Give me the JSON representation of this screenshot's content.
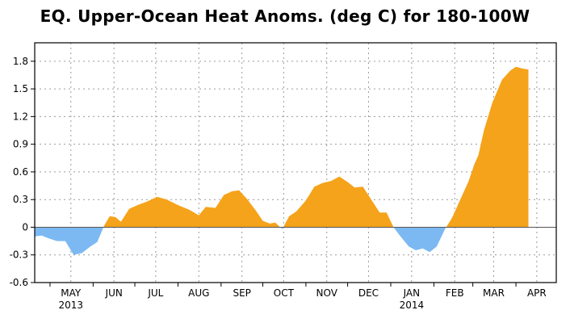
{
  "chart_data": {
    "type": "area",
    "title": "EQ. Upper-Ocean Heat Anoms. (deg C) for 180-100W",
    "xlabel": "",
    "ylabel": "",
    "ylim": [
      -0.6,
      2.0
    ],
    "yticks": [
      -0.6,
      -0.3,
      0,
      0.3,
      0.6,
      0.9,
      1.2,
      1.5,
      1.8
    ],
    "ytick_labels": [
      "-0.6",
      "-0.3",
      "0",
      "0.3",
      "0.6",
      "0.9",
      "1.2",
      "1.5",
      "1.8"
    ],
    "x_start": "2013-04-20",
    "x_end": "2014-04-30",
    "month_ticks": [
      {
        "date": "2013-05-01",
        "label": "MAY",
        "year": "2013"
      },
      {
        "date": "2013-06-01",
        "label": "JUN",
        "year": ""
      },
      {
        "date": "2013-07-01",
        "label": "JUL",
        "year": ""
      },
      {
        "date": "2013-08-01",
        "label": "AUG",
        "year": ""
      },
      {
        "date": "2013-09-01",
        "label": "SEP",
        "year": ""
      },
      {
        "date": "2013-10-01",
        "label": "OCT",
        "year": ""
      },
      {
        "date": "2013-11-01",
        "label": "NOV",
        "year": ""
      },
      {
        "date": "2013-12-01",
        "label": "DEC",
        "year": ""
      },
      {
        "date": "2014-01-01",
        "label": "JAN",
        "year": "2014"
      },
      {
        "date": "2014-02-01",
        "label": "FEB",
        "year": ""
      },
      {
        "date": "2014-03-01",
        "label": "MAR",
        "year": ""
      },
      {
        "date": "2014-04-01",
        "label": "APR",
        "year": ""
      }
    ],
    "grid": true,
    "positive_color": "#f5a31a",
    "negative_color": "#7cb9f2",
    "points": [
      {
        "date": "2013-04-20",
        "y": -0.1
      },
      {
        "date": "2013-04-25",
        "y": -0.09
      },
      {
        "date": "2013-04-30",
        "y": -0.12
      },
      {
        "date": "2013-05-06",
        "y": -0.15
      },
      {
        "date": "2013-05-12",
        "y": -0.15
      },
      {
        "date": "2013-05-18",
        "y": -0.3
      },
      {
        "date": "2013-05-24",
        "y": -0.28
      },
      {
        "date": "2013-05-30",
        "y": -0.21
      },
      {
        "date": "2013-06-04",
        "y": -0.16
      },
      {
        "date": "2013-06-09",
        "y": 0.02
      },
      {
        "date": "2013-06-13",
        "y": 0.12
      },
      {
        "date": "2013-06-17",
        "y": 0.11
      },
      {
        "date": "2013-06-21",
        "y": 0.06
      },
      {
        "date": "2013-06-27",
        "y": 0.2
      },
      {
        "date": "2013-07-03",
        "y": 0.24
      },
      {
        "date": "2013-07-10",
        "y": 0.28
      },
      {
        "date": "2013-07-17",
        "y": 0.33
      },
      {
        "date": "2013-07-24",
        "y": 0.3
      },
      {
        "date": "2013-08-01",
        "y": 0.24
      },
      {
        "date": "2013-08-09",
        "y": 0.19
      },
      {
        "date": "2013-08-16",
        "y": 0.13
      },
      {
        "date": "2013-08-21",
        "y": 0.22
      },
      {
        "date": "2013-08-28",
        "y": 0.21
      },
      {
        "date": "2013-09-03",
        "y": 0.35
      },
      {
        "date": "2013-09-09",
        "y": 0.39
      },
      {
        "date": "2013-09-14",
        "y": 0.4
      },
      {
        "date": "2013-09-20",
        "y": 0.3
      },
      {
        "date": "2013-09-26",
        "y": 0.18
      },
      {
        "date": "2013-10-01",
        "y": 0.07
      },
      {
        "date": "2013-10-06",
        "y": 0.04
      },
      {
        "date": "2013-10-10",
        "y": 0.05
      },
      {
        "date": "2013-10-15",
        "y": -0.02
      },
      {
        "date": "2013-10-20",
        "y": 0.12
      },
      {
        "date": "2013-10-25",
        "y": 0.17
      },
      {
        "date": "2013-11-01",
        "y": 0.29
      },
      {
        "date": "2013-11-07",
        "y": 0.44
      },
      {
        "date": "2013-11-13",
        "y": 0.48
      },
      {
        "date": "2013-11-19",
        "y": 0.5
      },
      {
        "date": "2013-11-25",
        "y": 0.55
      },
      {
        "date": "2013-12-01",
        "y": 0.49
      },
      {
        "date": "2013-12-06",
        "y": 0.43
      },
      {
        "date": "2013-12-12",
        "y": 0.44
      },
      {
        "date": "2013-12-18",
        "y": 0.3
      },
      {
        "date": "2013-12-24",
        "y": 0.16
      },
      {
        "date": "2013-12-29",
        "y": 0.16
      },
      {
        "date": "2014-01-03",
        "y": 0.0
      },
      {
        "date": "2014-01-08",
        "y": -0.1
      },
      {
        "date": "2014-01-14",
        "y": -0.21
      },
      {
        "date": "2014-01-19",
        "y": -0.25
      },
      {
        "date": "2014-01-24",
        "y": -0.23
      },
      {
        "date": "2014-01-29",
        "y": -0.27
      },
      {
        "date": "2014-02-03",
        "y": -0.21
      },
      {
        "date": "2014-02-09",
        "y": -0.02
      },
      {
        "date": "2014-02-14",
        "y": 0.1
      },
      {
        "date": "2014-02-20",
        "y": 0.3
      },
      {
        "date": "2014-02-26",
        "y": 0.5
      },
      {
        "date": "2014-03-02",
        "y": 0.68
      },
      {
        "date": "2014-03-05",
        "y": 0.78
      },
      {
        "date": "2014-03-09",
        "y": 1.05
      },
      {
        "date": "2014-03-15",
        "y": 1.35
      },
      {
        "date": "2014-03-22",
        "y": 1.6
      },
      {
        "date": "2014-03-28",
        "y": 1.7
      },
      {
        "date": "2014-04-01",
        "y": 1.74
      },
      {
        "date": "2014-04-06",
        "y": 1.72
      },
      {
        "date": "2014-04-10",
        "y": 1.71
      }
    ]
  }
}
